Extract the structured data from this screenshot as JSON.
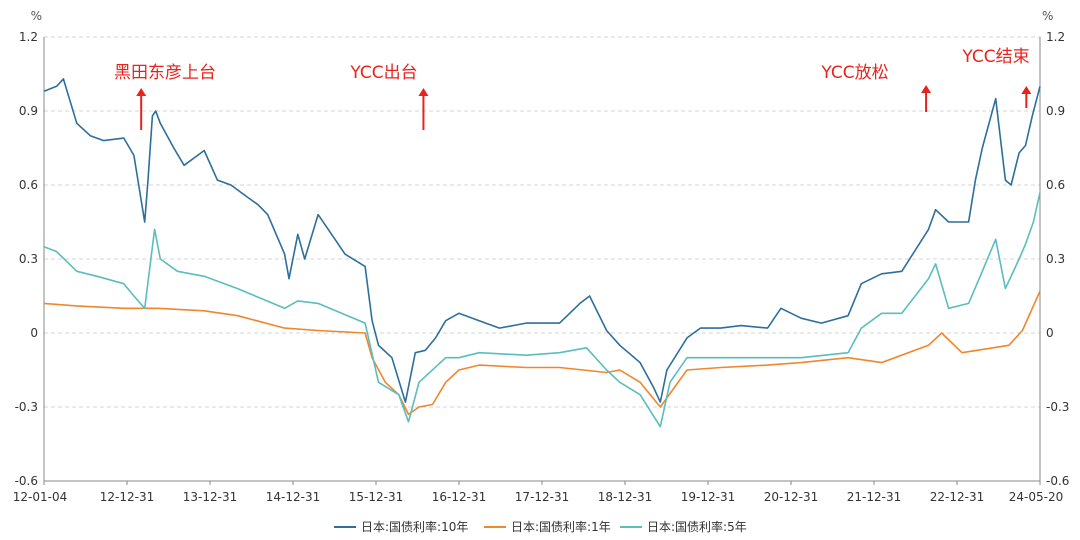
{
  "chart_data": {
    "type": "line",
    "title": "",
    "unit_left": "%",
    "unit_right": "%",
    "y_range": [
      -0.6,
      1.2
    ],
    "y_ticks": [
      "-0.6",
      "-0.3",
      "0",
      "0.3",
      "0.6",
      "0.9",
      "1.2"
    ],
    "x_ticks": [
      "12-01-04",
      "12-12-31",
      "13-12-31",
      "14-12-31",
      "15-12-31",
      "16-12-31",
      "17-12-31",
      "18-12-31",
      "19-12-31",
      "20-12-31",
      "21-12-31",
      "22-12-31",
      "24-05-20"
    ],
    "x_range": [
      "2012-01-04",
      "2024-05-20"
    ],
    "grid": "horizontal-dashed",
    "legend_position": "bottom",
    "annotations": [
      {
        "text": "黑田东彦上台",
        "date": "2013-03-20"
      },
      {
        "text": "YCC出台",
        "date": "2016-09-21"
      },
      {
        "text": "YCC放松",
        "date": "2022-12-20"
      },
      {
        "text": "YCC结束",
        "date": "2024-03-19"
      }
    ],
    "series": [
      {
        "name": "日本:国债利率:10年",
        "color": "#2d6f9c",
        "points": [
          [
            "2012-01-04",
            0.98
          ],
          [
            "2012-03-01",
            1.0
          ],
          [
            "2012-04-01",
            1.03
          ],
          [
            "2012-06-01",
            0.85
          ],
          [
            "2012-08-01",
            0.8
          ],
          [
            "2012-10-01",
            0.78
          ],
          [
            "2012-12-31",
            0.79
          ],
          [
            "2013-02-15",
            0.72
          ],
          [
            "2013-04-05",
            0.45
          ],
          [
            "2013-04-20",
            0.62
          ],
          [
            "2013-05-10",
            0.88
          ],
          [
            "2013-05-25",
            0.9
          ],
          [
            "2013-06-15",
            0.85
          ],
          [
            "2013-08-15",
            0.75
          ],
          [
            "2013-10-01",
            0.68
          ],
          [
            "2013-12-31",
            0.74
          ],
          [
            "2014-03-01",
            0.62
          ],
          [
            "2014-05-01",
            0.6
          ],
          [
            "2014-07-01",
            0.56
          ],
          [
            "2014-09-01",
            0.52
          ],
          [
            "2014-10-15",
            0.48
          ],
          [
            "2014-12-31",
            0.32
          ],
          [
            "2015-01-20",
            0.22
          ],
          [
            "2015-03-01",
            0.4
          ],
          [
            "2015-04-01",
            0.3
          ],
          [
            "2015-06-01",
            0.48
          ],
          [
            "2015-08-01",
            0.4
          ],
          [
            "2015-10-01",
            0.32
          ],
          [
            "2015-12-31",
            0.27
          ],
          [
            "2016-02-01",
            0.05
          ],
          [
            "2016-03-01",
            -0.05
          ],
          [
            "2016-05-01",
            -0.1
          ],
          [
            "2016-07-01",
            -0.28
          ],
          [
            "2016-08-15",
            -0.08
          ],
          [
            "2016-09-30",
            -0.07
          ],
          [
            "2016-11-15",
            -0.02
          ],
          [
            "2016-12-31",
            0.05
          ],
          [
            "2017-03-01",
            0.08
          ],
          [
            "2017-06-01",
            0.05
          ],
          [
            "2017-09-01",
            0.02
          ],
          [
            "2017-12-31",
            0.04
          ],
          [
            "2018-03-01",
            0.04
          ],
          [
            "2018-06-01",
            0.04
          ],
          [
            "2018-09-01",
            0.12
          ],
          [
            "2018-10-15",
            0.15
          ],
          [
            "2018-12-31",
            0.01
          ],
          [
            "2019-03-01",
            -0.05
          ],
          [
            "2019-06-01",
            -0.12
          ],
          [
            "2019-08-01",
            -0.22
          ],
          [
            "2019-09-01",
            -0.28
          ],
          [
            "2019-10-01",
            -0.15
          ],
          [
            "2019-12-31",
            -0.02
          ],
          [
            "2020-03-01",
            0.02
          ],
          [
            "2020-06-01",
            0.02
          ],
          [
            "2020-09-01",
            0.03
          ],
          [
            "2020-12-31",
            0.02
          ],
          [
            "2021-03-01",
            0.1
          ],
          [
            "2021-06-01",
            0.06
          ],
          [
            "2021-09-01",
            0.04
          ],
          [
            "2021-12-31",
            0.07
          ],
          [
            "2022-03-01",
            0.2
          ],
          [
            "2022-06-01",
            0.24
          ],
          [
            "2022-09-01",
            0.25
          ],
          [
            "2022-12-31",
            0.42
          ],
          [
            "2023-02-01",
            0.5
          ],
          [
            "2023-04-01",
            0.45
          ],
          [
            "2023-07-01",
            0.45
          ],
          [
            "2023-08-01",
            0.62
          ],
          [
            "2023-09-01",
            0.75
          ],
          [
            "2023-11-01",
            0.95
          ],
          [
            "2023-12-15",
            0.62
          ],
          [
            "2024-01-10",
            0.6
          ],
          [
            "2024-02-15",
            0.73
          ],
          [
            "2024-03-15",
            0.76
          ],
          [
            "2024-04-15",
            0.88
          ],
          [
            "2024-05-20",
            1.0
          ]
        ]
      },
      {
        "name": "日本:国债利率:1年",
        "color": "#f0862d",
        "points": [
          [
            "2012-01-04",
            0.12
          ],
          [
            "2012-06-01",
            0.11
          ],
          [
            "2012-12-31",
            0.1
          ],
          [
            "2013-06-01",
            0.1
          ],
          [
            "2013-12-31",
            0.09
          ],
          [
            "2014-06-01",
            0.07
          ],
          [
            "2014-12-31",
            0.02
          ],
          [
            "2015-06-01",
            0.01
          ],
          [
            "2015-12-31",
            0.0
          ],
          [
            "2016-02-01",
            -0.1
          ],
          [
            "2016-04-01",
            -0.2
          ],
          [
            "2016-06-01",
            -0.25
          ],
          [
            "2016-07-15",
            -0.33
          ],
          [
            "2016-09-01",
            -0.3
          ],
          [
            "2016-11-01",
            -0.29
          ],
          [
            "2016-12-31",
            -0.2
          ],
          [
            "2017-03-01",
            -0.15
          ],
          [
            "2017-06-01",
            -0.13
          ],
          [
            "2017-12-31",
            -0.14
          ],
          [
            "2018-06-01",
            -0.14
          ],
          [
            "2018-12-31",
            -0.16
          ],
          [
            "2019-03-01",
            -0.15
          ],
          [
            "2019-06-01",
            -0.2
          ],
          [
            "2019-09-01",
            -0.3
          ],
          [
            "2019-12-31",
            -0.15
          ],
          [
            "2020-06-01",
            -0.14
          ],
          [
            "2020-12-31",
            -0.13
          ],
          [
            "2021-06-01",
            -0.12
          ],
          [
            "2021-12-31",
            -0.1
          ],
          [
            "2022-06-01",
            -0.12
          ],
          [
            "2022-12-31",
            -0.05
          ],
          [
            "2023-03-01",
            0.0
          ],
          [
            "2023-06-01",
            -0.08
          ],
          [
            "2023-12-31",
            -0.05
          ],
          [
            "2024-03-01",
            0.01
          ],
          [
            "2024-05-20",
            0.17
          ]
        ]
      },
      {
        "name": "日本:国债利率:5年",
        "color": "#5bbdbd",
        "points": [
          [
            "2012-01-04",
            0.35
          ],
          [
            "2012-03-01",
            0.33
          ],
          [
            "2012-06-01",
            0.25
          ],
          [
            "2012-09-01",
            0.23
          ],
          [
            "2012-12-31",
            0.2
          ],
          [
            "2013-02-15",
            0.15
          ],
          [
            "2013-04-05",
            0.1
          ],
          [
            "2013-05-20",
            0.42
          ],
          [
            "2013-06-15",
            0.3
          ],
          [
            "2013-09-01",
            0.25
          ],
          [
            "2013-12-31",
            0.23
          ],
          [
            "2014-06-01",
            0.18
          ],
          [
            "2014-12-31",
            0.1
          ],
          [
            "2015-03-01",
            0.13
          ],
          [
            "2015-06-01",
            0.12
          ],
          [
            "2015-12-31",
            0.04
          ],
          [
            "2016-03-01",
            -0.2
          ],
          [
            "2016-06-01",
            -0.25
          ],
          [
            "2016-07-15",
            -0.36
          ],
          [
            "2016-09-01",
            -0.2
          ],
          [
            "2016-12-31",
            -0.1
          ],
          [
            "2017-03-01",
            -0.1
          ],
          [
            "2017-06-01",
            -0.08
          ],
          [
            "2017-12-31",
            -0.09
          ],
          [
            "2018-06-01",
            -0.08
          ],
          [
            "2018-10-01",
            -0.06
          ],
          [
            "2018-12-31",
            -0.15
          ],
          [
            "2019-03-01",
            -0.2
          ],
          [
            "2019-06-01",
            -0.25
          ],
          [
            "2019-09-01",
            -0.38
          ],
          [
            "2019-10-15",
            -0.2
          ],
          [
            "2019-12-31",
            -0.1
          ],
          [
            "2020-06-01",
            -0.1
          ],
          [
            "2020-12-31",
            -0.1
          ],
          [
            "2021-06-01",
            -0.1
          ],
          [
            "2021-12-31",
            -0.08
          ],
          [
            "2022-03-01",
            0.02
          ],
          [
            "2022-06-01",
            0.08
          ],
          [
            "2022-09-01",
            0.08
          ],
          [
            "2022-12-31",
            0.22
          ],
          [
            "2023-02-01",
            0.28
          ],
          [
            "2023-04-01",
            0.1
          ],
          [
            "2023-07-01",
            0.12
          ],
          [
            "2023-09-01",
            0.25
          ],
          [
            "2023-11-01",
            0.38
          ],
          [
            "2023-12-15",
            0.18
          ],
          [
            "2024-02-15",
            0.3
          ],
          [
            "2024-03-15",
            0.36
          ],
          [
            "2024-04-20",
            0.45
          ],
          [
            "2024-05-20",
            0.57
          ]
        ]
      }
    ]
  }
}
